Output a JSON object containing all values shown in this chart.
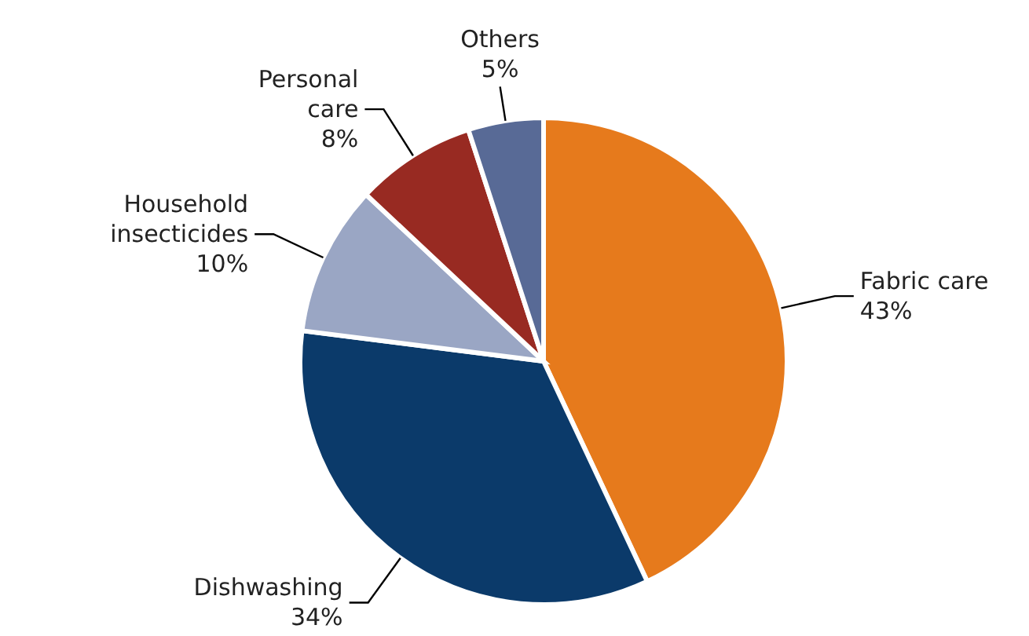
{
  "chart_data": {
    "type": "pie",
    "categories": [
      "Fabric care",
      "Dishwashing",
      "Household insecticides",
      "Personal care",
      "Others"
    ],
    "values": [
      43,
      34,
      10,
      8,
      5
    ],
    "value_labels": [
      "43%",
      "34%",
      "10%",
      "8%",
      "5%"
    ],
    "colors": [
      "#e67a1c",
      "#0b3a6a",
      "#9aa6c4",
      "#982a22",
      "#586a96"
    ]
  }
}
